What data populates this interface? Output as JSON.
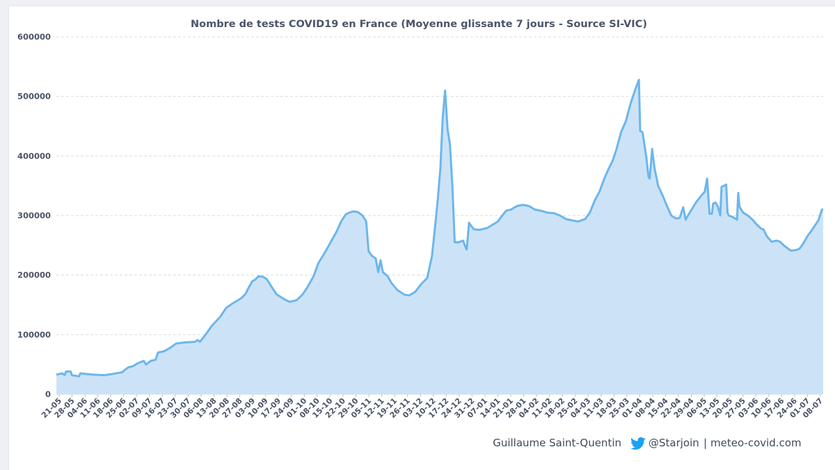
{
  "chart_data": {
    "type": "area",
    "title": "Nombre de tests COVID19 en France (Moyenne glissante 7 jours - Source SI-VIC)",
    "xlabel": "",
    "ylabel": "",
    "ylim": [
      0,
      600000
    ],
    "yticks": [
      "0",
      "100000",
      "200000",
      "300000",
      "400000",
      "500000",
      "600000"
    ],
    "grid": true,
    "colors": {
      "line": "#6cb6ec",
      "fill": "#c7e0f6",
      "grid": "#d6dbe4",
      "axis_text": "#4a5568"
    },
    "xtick_labels": [
      "21-05",
      "28-05",
      "04-06",
      "11-06",
      "18-06",
      "25-06",
      "02-07",
      "09-07",
      "16-07",
      "23-07",
      "30-07",
      "06-08",
      "13-08",
      "20-08",
      "27-08",
      "03-09",
      "10-09",
      "17-09",
      "24-09",
      "01-10",
      "08-10",
      "15-10",
      "22-10",
      "29-10",
      "05-11",
      "12-11",
      "19-11",
      "26-11",
      "03-12",
      "10-12",
      "17-12",
      "24-12",
      "31-12",
      "07-01",
      "14-01",
      "21-01",
      "28-01",
      "04-02",
      "11-02",
      "18-02",
      "25-02",
      "04-03",
      "11-03",
      "18-03",
      "25-03",
      "01-04",
      "08-04",
      "15-04",
      "22-04",
      "29-04",
      "06-05",
      "13-05",
      "20-05",
      "27-05",
      "03-06",
      "10-06",
      "17-06",
      "24-06",
      "01-07",
      "08-07"
    ],
    "series": [
      {
        "values": [
          [
            0,
            33000
          ],
          [
            5,
            35000
          ],
          [
            7,
            32000
          ],
          [
            8,
            38000
          ],
          [
            12,
            38000
          ],
          [
            13,
            32000
          ],
          [
            19,
            30000
          ],
          [
            20,
            35000
          ],
          [
            30,
            33000
          ],
          [
            40,
            32000
          ],
          [
            47,
            34000
          ],
          [
            55,
            37000
          ],
          [
            58,
            42000
          ],
          [
            60,
            45000
          ],
          [
            64,
            47000
          ],
          [
            68,
            52000
          ],
          [
            73,
            56000
          ],
          [
            75,
            50000
          ],
          [
            79,
            56000
          ],
          [
            83,
            58000
          ],
          [
            85,
            70000
          ],
          [
            90,
            72000
          ],
          [
            96,
            79000
          ],
          [
            100,
            85000
          ],
          [
            107,
            87000
          ],
          [
            116,
            88000
          ],
          [
            118,
            91000
          ],
          [
            120,
            88000
          ],
          [
            124,
            98000
          ],
          [
            130,
            115000
          ],
          [
            137,
            130000
          ],
          [
            142,
            145000
          ],
          [
            147,
            152000
          ],
          [
            152,
            158000
          ],
          [
            155,
            162000
          ],
          [
            158,
            168000
          ],
          [
            161,
            180000
          ],
          [
            164,
            190000
          ],
          [
            166,
            192000
          ],
          [
            169,
            198000
          ],
          [
            173,
            197000
          ],
          [
            176,
            193000
          ],
          [
            180,
            180000
          ],
          [
            184,
            168000
          ],
          [
            190,
            160000
          ],
          [
            195,
            155000
          ],
          [
            201,
            158000
          ],
          [
            206,
            168000
          ],
          [
            210,
            180000
          ],
          [
            215,
            198000
          ],
          [
            219,
            220000
          ],
          [
            222,
            230000
          ],
          [
            226,
            243000
          ],
          [
            230,
            258000
          ],
          [
            234,
            272000
          ],
          [
            238,
            290000
          ],
          [
            242,
            302000
          ],
          [
            245,
            305000
          ],
          [
            248,
            307000
          ],
          [
            252,
            306000
          ],
          [
            256,
            300000
          ],
          [
            259,
            290000
          ],
          [
            261,
            240000
          ],
          [
            264,
            232000
          ],
          [
            267,
            228000
          ],
          [
            269,
            205000
          ],
          [
            271,
            225000
          ],
          [
            273,
            205000
          ],
          [
            277,
            198000
          ],
          [
            280,
            187000
          ],
          [
            285,
            175000
          ],
          [
            291,
            167000
          ],
          [
            295,
            166000
          ],
          [
            300,
            172000
          ],
          [
            305,
            185000
          ],
          [
            310,
            195000
          ],
          [
            314,
            232000
          ],
          [
            317,
            290000
          ],
          [
            319,
            330000
          ],
          [
            321,
            380000
          ],
          [
            323,
            465000
          ],
          [
            325,
            510000
          ],
          [
            327,
            445000
          ],
          [
            329,
            420000
          ],
          [
            331,
            350000
          ],
          [
            333,
            255000
          ],
          [
            336,
            255000
          ],
          [
            340,
            258000
          ],
          [
            342,
            247000
          ],
          [
            343,
            243000
          ],
          [
            345,
            288000
          ],
          [
            347,
            282000
          ],
          [
            349,
            277000
          ],
          [
            354,
            276000
          ],
          [
            360,
            279000
          ],
          [
            365,
            285000
          ],
          [
            369,
            290000
          ],
          [
            372,
            298000
          ],
          [
            376,
            308000
          ],
          [
            380,
            310000
          ],
          [
            385,
            316000
          ],
          [
            390,
            318000
          ],
          [
            395,
            316000
          ],
          [
            400,
            310000
          ],
          [
            405,
            308000
          ],
          [
            410,
            305000
          ],
          [
            416,
            304000
          ],
          [
            421,
            300000
          ],
          [
            426,
            294000
          ],
          [
            431,
            292000
          ],
          [
            436,
            290000
          ],
          [
            442,
            294000
          ],
          [
            446,
            305000
          ],
          [
            450,
            325000
          ],
          [
            454,
            340000
          ],
          [
            458,
            362000
          ],
          [
            462,
            380000
          ],
          [
            465,
            392000
          ],
          [
            468,
            410000
          ],
          [
            472,
            440000
          ],
          [
            476,
            458000
          ],
          [
            480,
            488000
          ],
          [
            484,
            512000
          ],
          [
            487,
            528000
          ],
          [
            488,
            442000
          ],
          [
            490,
            440000
          ],
          [
            493,
            400000
          ],
          [
            495,
            365000
          ],
          [
            496,
            362000
          ],
          [
            498,
            412000
          ],
          [
            500,
            380000
          ],
          [
            503,
            350000
          ],
          [
            507,
            333000
          ],
          [
            510,
            318000
          ],
          [
            514,
            300000
          ],
          [
            518,
            295000
          ],
          [
            521,
            296000
          ],
          [
            524,
            314000
          ],
          [
            526,
            293000
          ],
          [
            528,
            300000
          ],
          [
            531,
            310000
          ],
          [
            535,
            323000
          ],
          [
            539,
            333000
          ],
          [
            542,
            340000
          ],
          [
            544,
            362000
          ],
          [
            546,
            303000
          ],
          [
            548,
            303000
          ],
          [
            549,
            320000
          ],
          [
            551,
            322000
          ],
          [
            553,
            315000
          ],
          [
            555,
            300000
          ],
          [
            556,
            348000
          ],
          [
            558,
            350000
          ],
          [
            560,
            352000
          ],
          [
            561,
            305000
          ],
          [
            562,
            300000
          ],
          [
            565,
            298000
          ],
          [
            569,
            293000
          ],
          [
            570,
            338000
          ],
          [
            571,
            315000
          ],
          [
            574,
            305000
          ],
          [
            578,
            300000
          ],
          [
            582,
            293000
          ],
          [
            585,
            286000
          ],
          [
            589,
            278000
          ],
          [
            591,
            277000
          ],
          [
            594,
            265000
          ],
          [
            598,
            256000
          ],
          [
            602,
            258000
          ],
          [
            605,
            256000
          ],
          [
            608,
            250000
          ],
          [
            612,
            244000
          ],
          [
            614,
            241000
          ],
          [
            618,
            242000
          ],
          [
            621,
            244000
          ],
          [
            624,
            252000
          ],
          [
            628,
            266000
          ],
          [
            631,
            274000
          ],
          [
            634,
            283000
          ],
          [
            637,
            292000
          ],
          [
            640,
            310000
          ],
          [
            641,
            310000
          ]
        ]
      }
    ]
  },
  "footer": {
    "author": "Guillaume Saint-Quentin",
    "handle": "@Starjoin",
    "separator": "|",
    "site": "meteo-covid.com"
  }
}
